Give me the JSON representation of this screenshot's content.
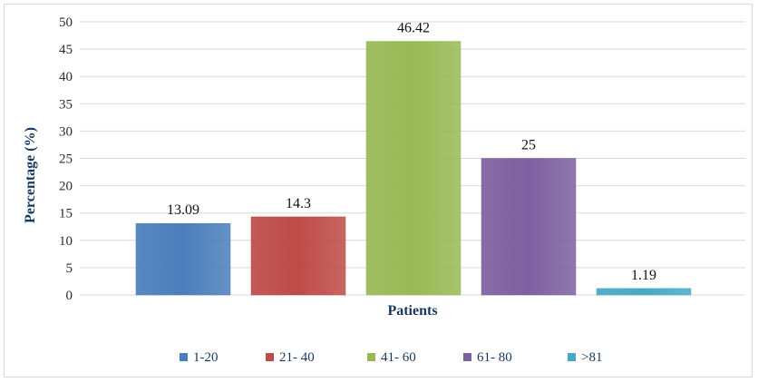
{
  "chart_data": {
    "type": "bar",
    "title": "",
    "xlabel": "Patients",
    "ylabel": "Percentage (%)",
    "ylim": [
      0,
      50
    ],
    "yticks": [
      0,
      5,
      10,
      15,
      20,
      25,
      30,
      35,
      40,
      45,
      50
    ],
    "grid": true,
    "legend_position": "bottom",
    "series": [
      {
        "name": "1-20",
        "value": 13.09,
        "label": "13.09",
        "color": "#4a7ebb"
      },
      {
        "name": "21- 40",
        "value": 14.3,
        "label": "14.3",
        "color": "#be4b48"
      },
      {
        "name": "41- 60",
        "value": 46.42,
        "label": "46.42",
        "color": "#98b954"
      },
      {
        "name": "61- 80",
        "value": 25,
        "label": "25",
        "color": "#7d60a0"
      },
      {
        "name": ">81",
        "value": 1.19,
        "label": "1.19",
        "color": "#46aac5"
      }
    ]
  }
}
